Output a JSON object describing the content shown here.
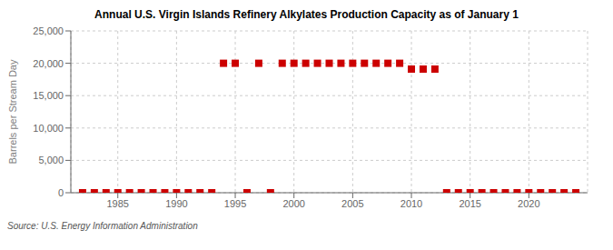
{
  "chart_data": {
    "type": "scatter",
    "title": "Annual U.S. Virgin Islands Refinery Alkylates Production Capacity as of January 1",
    "ylabel": "Barrels per Stream Day",
    "source": "Source: U.S. Energy Information Administration",
    "color": "#cc0000",
    "marker": "square",
    "grid": true,
    "xlim": [
      1981,
      2025
    ],
    "xticks": [
      1985,
      1990,
      1995,
      2000,
      2005,
      2010,
      2015,
      2020
    ],
    "ylim": [
      0,
      25000
    ],
    "yticks": [
      0,
      {
        "value": 5000,
        "label": "5,000"
      },
      {
        "value": 10000,
        "label": "10,000"
      },
      {
        "value": 15000,
        "label": "15,000"
      },
      {
        "value": 20000,
        "label": "20,000"
      },
      {
        "value": 25000,
        "label": "25,000"
      }
    ],
    "x": [
      1982,
      1983,
      1984,
      1985,
      1986,
      1987,
      1988,
      1989,
      1990,
      1991,
      1992,
      1993,
      1994,
      1995,
      1996,
      1997,
      1998,
      1999,
      2000,
      2001,
      2002,
      2003,
      2004,
      2005,
      2006,
      2007,
      2008,
      2009,
      2010,
      2011,
      2012,
      2013,
      2014,
      2015,
      2016,
      2017,
      2018,
      2019,
      2020,
      2021,
      2022,
      2023,
      2024
    ],
    "values": [
      0,
      0,
      0,
      0,
      0,
      0,
      0,
      0,
      0,
      0,
      0,
      0,
      20000,
      20000,
      0,
      20000,
      0,
      20000,
      20000,
      20000,
      20000,
      20000,
      20000,
      20000,
      20000,
      20000,
      20000,
      20000,
      19100,
      19100,
      19100,
      0,
      0,
      0,
      0,
      0,
      0,
      0,
      0,
      0,
      0,
      0,
      0
    ]
  }
}
